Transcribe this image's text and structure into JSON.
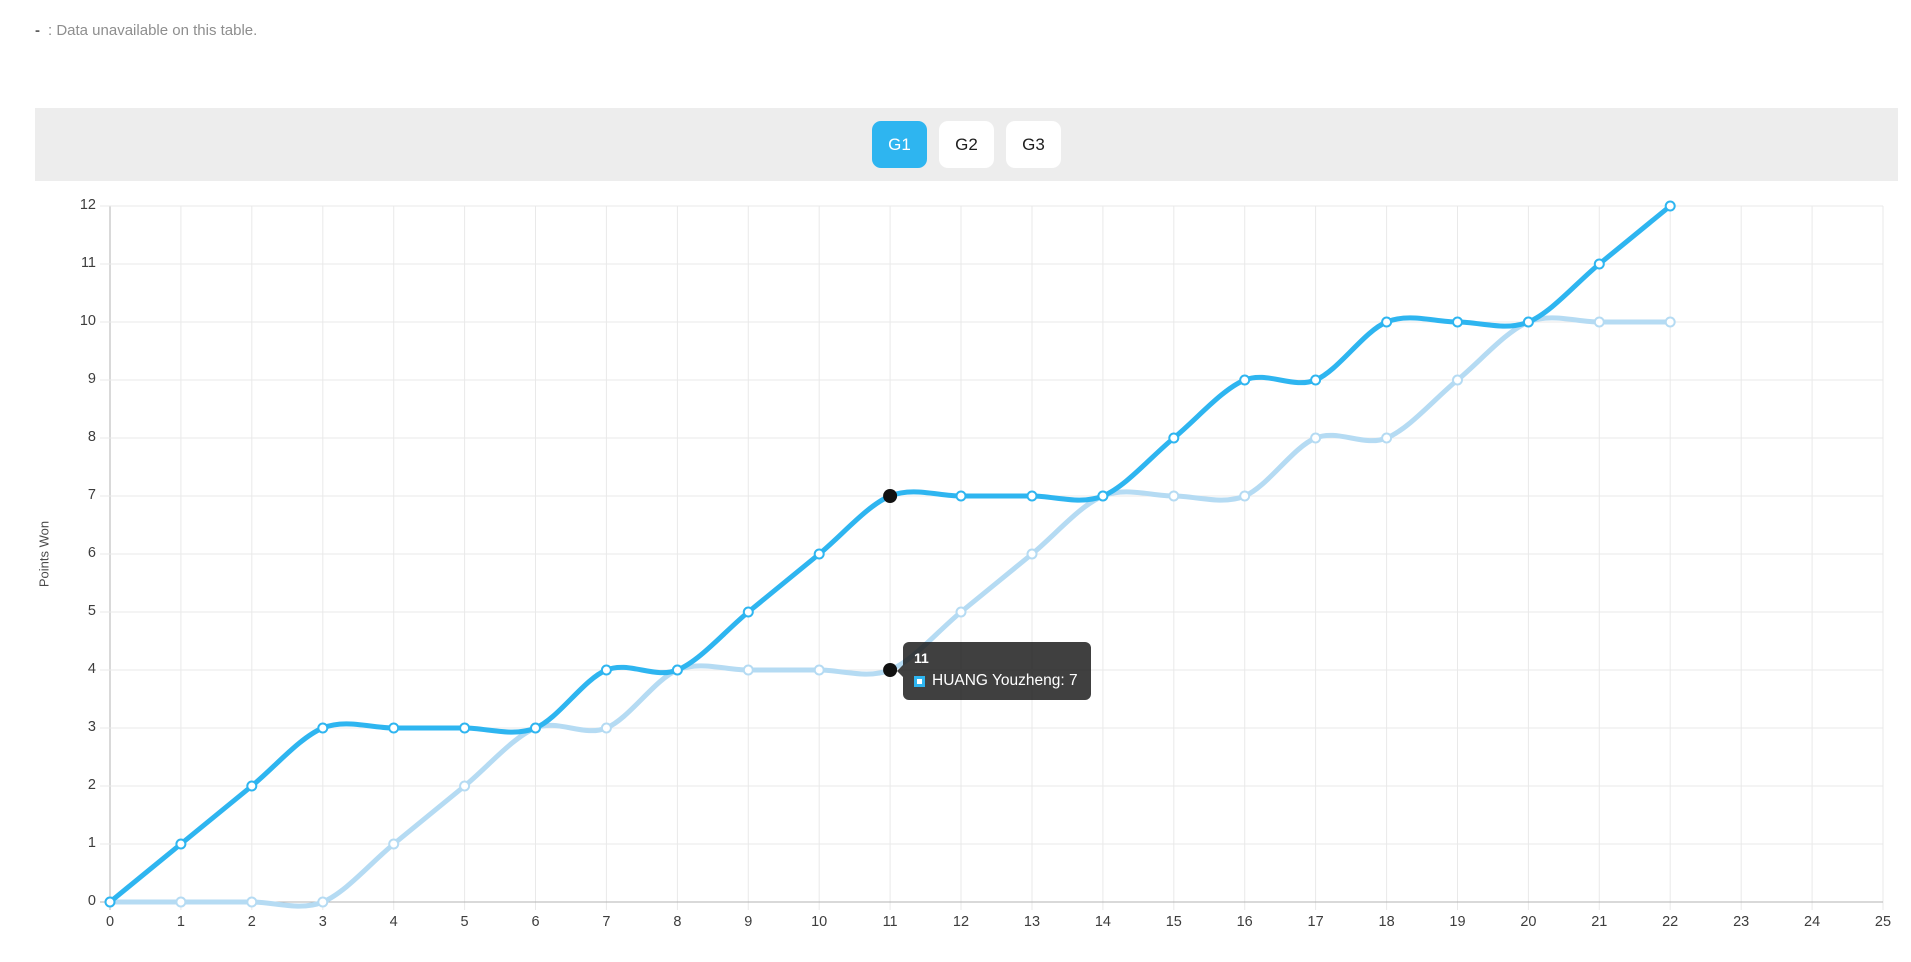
{
  "note": {
    "dash": "-",
    "text": ": Data unavailable on this table."
  },
  "tabs": [
    {
      "label": "G1",
      "active": true
    },
    {
      "label": "G2",
      "active": false
    },
    {
      "label": "G3",
      "active": false
    }
  ],
  "colors": {
    "accent": "#2eb5f0",
    "series1": "#2eb5f0",
    "series2": "#b5dbf3",
    "tab_bar_bg": "#ededed",
    "tooltip_bg": "rgba(28,28,28,0.84)",
    "highlight_dot": "#111111"
  },
  "chart_data": {
    "type": "line",
    "title": "",
    "xlabel": "",
    "ylabel": "Points Won",
    "xlim": [
      0,
      25
    ],
    "ylim": [
      0,
      12
    ],
    "grid": true,
    "x_ticks": [
      0,
      1,
      2,
      3,
      4,
      5,
      6,
      7,
      8,
      9,
      10,
      11,
      12,
      13,
      14,
      15,
      16,
      17,
      18,
      19,
      20,
      21,
      22,
      23,
      24,
      25
    ],
    "y_ticks": [
      0,
      1,
      2,
      3,
      4,
      5,
      6,
      7,
      8,
      9,
      10,
      11,
      12
    ],
    "x": [
      0,
      1,
      2,
      3,
      4,
      5,
      6,
      7,
      8,
      9,
      10,
      11,
      12,
      13,
      14,
      15,
      16,
      17,
      18,
      19,
      20,
      21,
      22
    ],
    "series": [
      {
        "name": "HUANG Youzheng",
        "color": "#2eb5f0",
        "values": [
          0,
          1,
          2,
          3,
          3,
          3,
          3,
          4,
          4,
          5,
          6,
          7,
          7,
          7,
          7,
          8,
          9,
          9,
          10,
          10,
          10,
          11,
          12
        ]
      },
      {
        "name": "",
        "color": "#b5dbf3",
        "values": [
          0,
          0,
          0,
          0,
          1,
          2,
          3,
          3,
          4,
          4,
          4,
          4,
          5,
          6,
          7,
          7,
          7,
          8,
          8,
          9,
          10,
          10,
          10
        ]
      }
    ],
    "tooltip": {
      "title": "11",
      "body": "HUANG Youzheng: 7",
      "anchor": {
        "x": 11,
        "y": 7
      }
    },
    "highlight_points": [
      {
        "x": 11,
        "y": 7
      },
      {
        "x": 11,
        "y": 4
      }
    ]
  }
}
